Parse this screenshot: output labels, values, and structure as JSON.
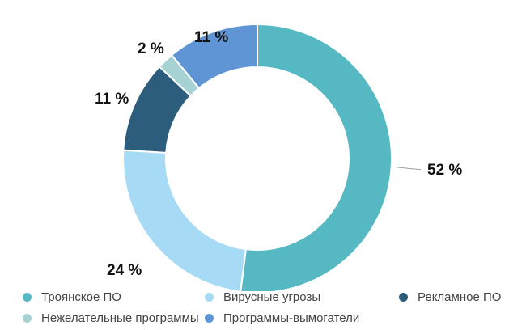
{
  "chart_data": {
    "type": "pie",
    "categories": [
      "Троянское ПО",
      "Вирусные угрозы",
      "Рекламное ПО",
      "Нежелательные программы",
      "Программы-вымогатели"
    ],
    "values": [
      52,
      24,
      11,
      2,
      11
    ],
    "labels": [
      "52 %",
      "24 %",
      "11 %",
      "2 %",
      "11 %"
    ],
    "colors": [
      "#56b8c3",
      "#a7dbf5",
      "#2c5d7d",
      "#a6d2d3",
      "#5f95d4"
    ],
    "donut": true,
    "legend": "bottom"
  }
}
